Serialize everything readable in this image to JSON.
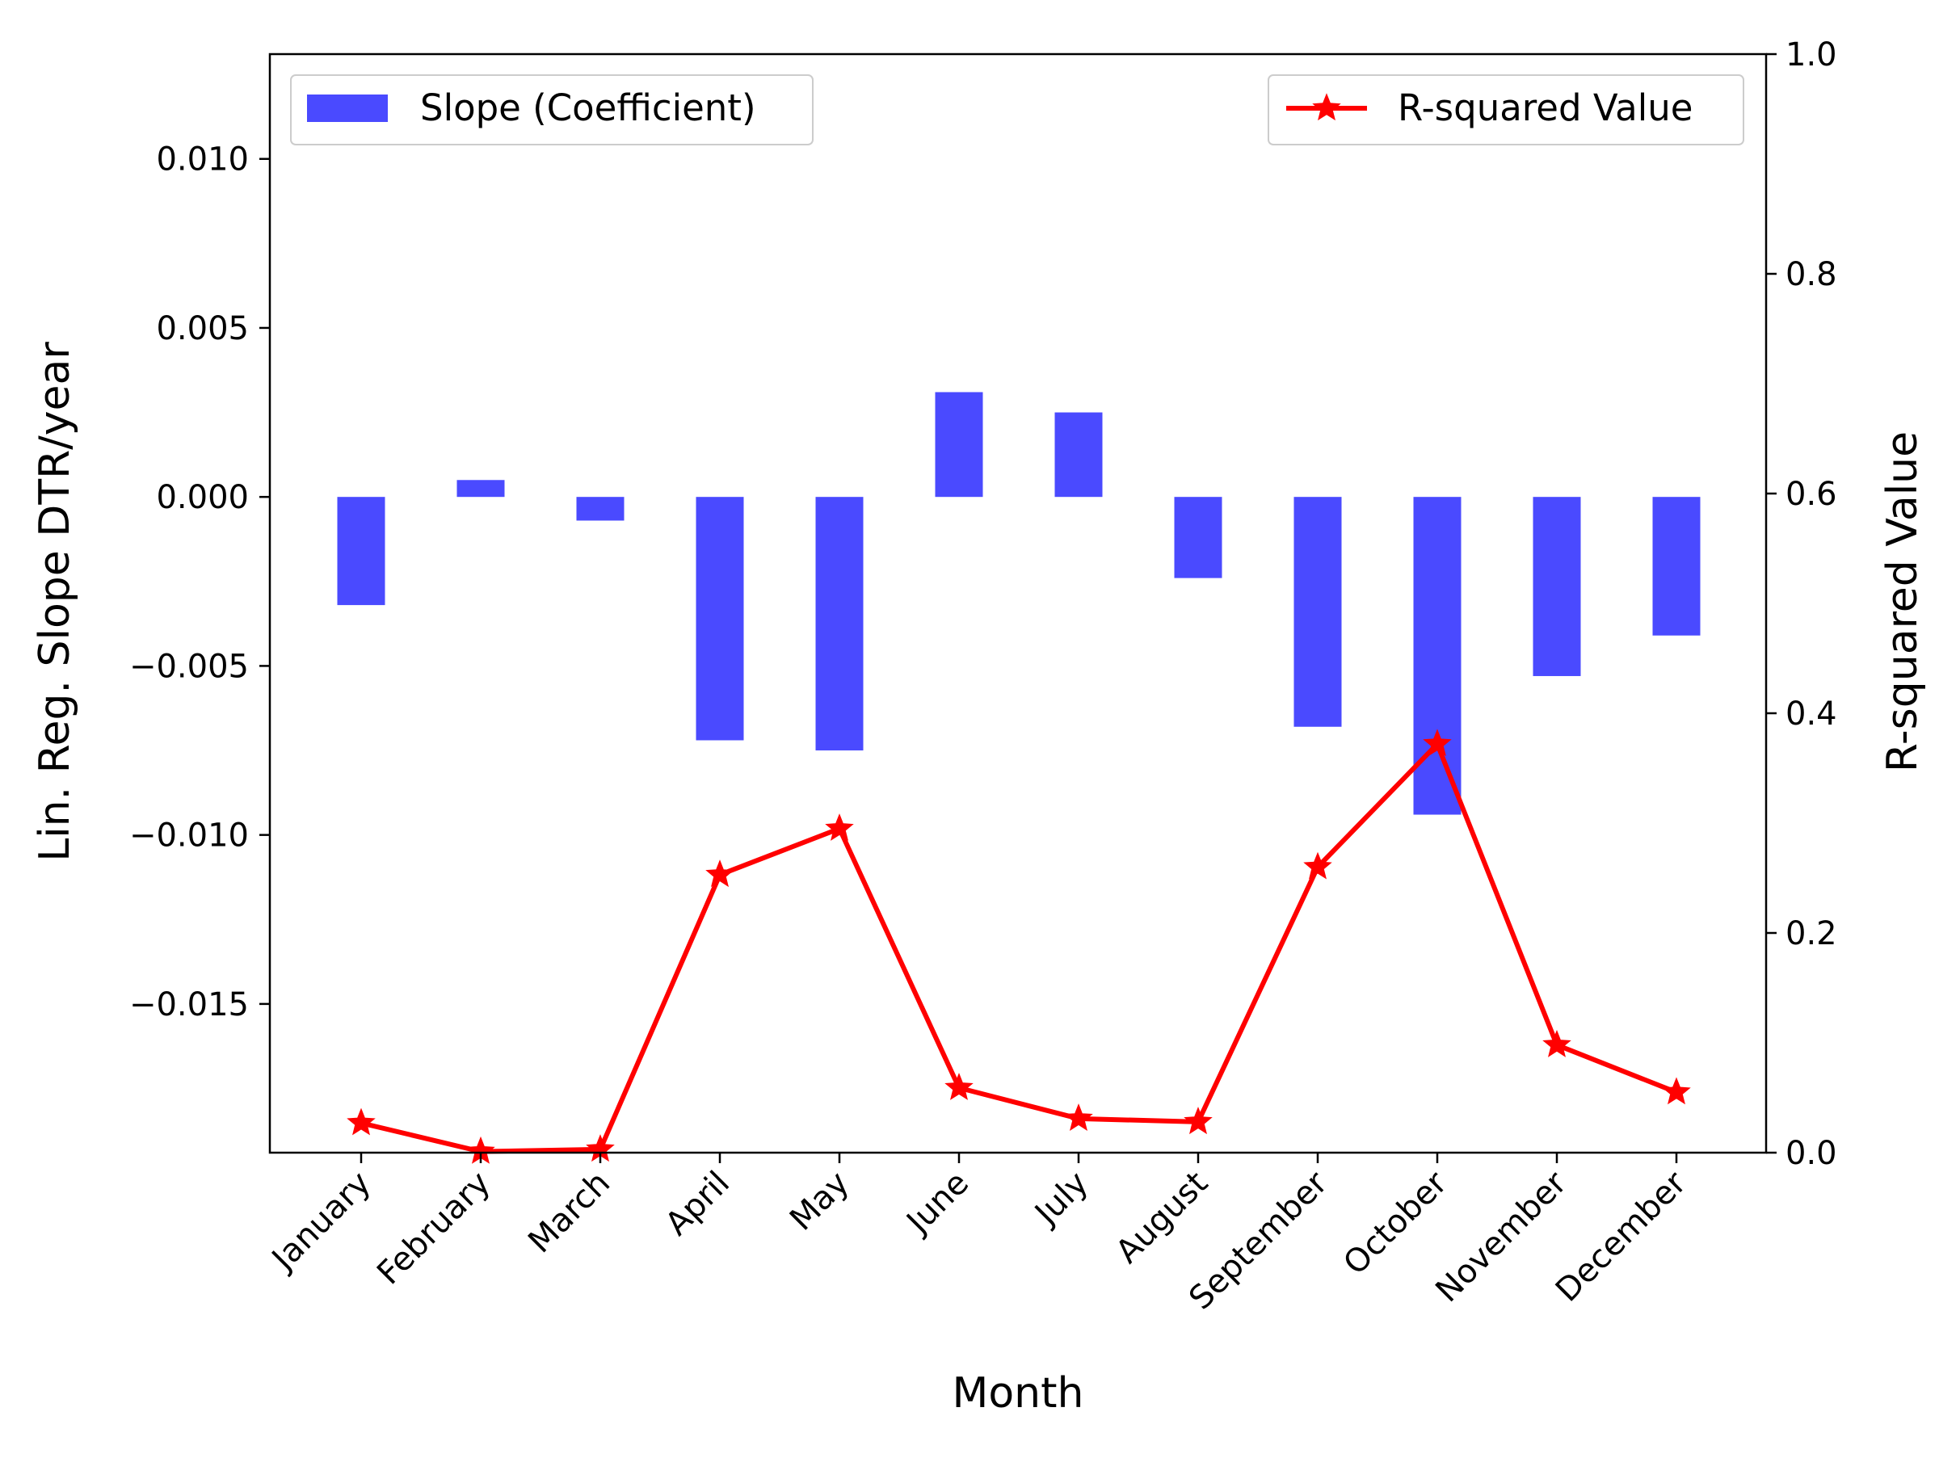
{
  "chart_data": {
    "type": "bar+line",
    "categories": [
      "January",
      "February",
      "March",
      "April",
      "May",
      "June",
      "July",
      "August",
      "September",
      "October",
      "November",
      "December"
    ],
    "title": "",
    "xlabel": "Month",
    "ylabel_left": "Lin. Reg. Slope DTR/year",
    "ylabel_right": "R-squared Value",
    "ylim_left": [
      -0.0194,
      0.0131
    ],
    "ylim_right": [
      0.0,
      1.0
    ],
    "yticks_left": [
      "0.010",
      "0.005",
      "0.000",
      "−0.005",
      "−0.010",
      "−0.015"
    ],
    "yticks_left_values": [
      0.01,
      0.005,
      0.0,
      -0.005,
      -0.01,
      -0.015
    ],
    "yticks_right": [
      "0.0",
      "0.2",
      "0.4",
      "0.6",
      "0.8",
      "1.0"
    ],
    "yticks_right_values": [
      0.0,
      0.2,
      0.4,
      0.6,
      0.8,
      1.0
    ],
    "grid": false,
    "series": [
      {
        "name": "Slope (Coefficient)",
        "kind": "bar",
        "axis": "left",
        "color": "#4a4aff",
        "values": [
          -0.0032,
          0.0005,
          -0.0007,
          -0.0072,
          -0.0075,
          0.0031,
          0.0025,
          -0.0024,
          -0.0068,
          -0.0094,
          -0.0053,
          -0.0041
        ]
      },
      {
        "name": "R-squared Value",
        "kind": "line",
        "axis": "right",
        "marker": "star",
        "color": "#ff0000",
        "values": [
          0.027,
          0.001,
          0.003,
          0.253,
          0.295,
          0.059,
          0.031,
          0.028,
          0.26,
          0.372,
          0.098,
          0.055
        ]
      }
    ],
    "legend": [
      {
        "placement": "top-left",
        "label": "Slope (Coefficient)"
      },
      {
        "placement": "top-right",
        "label": "R-squared Value"
      }
    ]
  }
}
